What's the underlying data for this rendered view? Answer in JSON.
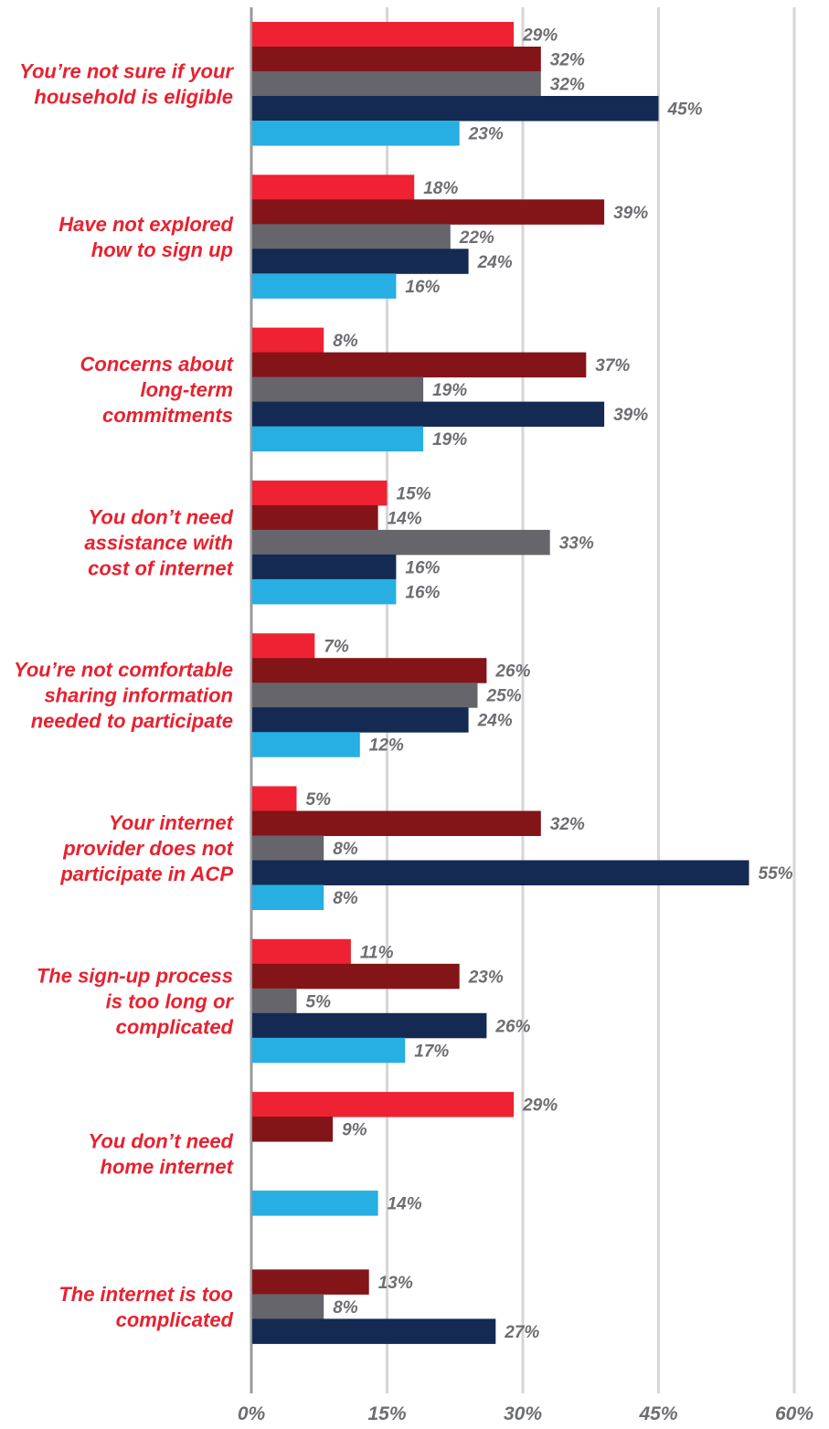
{
  "chart_data": {
    "type": "bar",
    "orientation": "horizontal",
    "categories": [
      [
        "You’re not sure if your",
        "household is eligible"
      ],
      [
        "Have not explored",
        "how to sign up"
      ],
      [
        "Concerns about",
        "long-term",
        "commitments"
      ],
      [
        "You don’t need",
        "assistance with",
        "cost of internet"
      ],
      [
        "You’re not comfortable",
        "sharing information",
        "needed to participate"
      ],
      [
        "Your internet",
        "provider does not",
        "participate in ACP"
      ],
      [
        "The sign-up process",
        "is too long or",
        "complicated"
      ],
      [
        "You don’t need",
        "home internet"
      ],
      [
        "The internet is too",
        "complicated"
      ]
    ],
    "series": [
      {
        "color": "#ee2233",
        "values": [
          29,
          18,
          8,
          15,
          7,
          5,
          11,
          29,
          null
        ]
      },
      {
        "color": "#831418",
        "values": [
          32,
          39,
          37,
          14,
          26,
          32,
          23,
          9,
          13
        ]
      },
      {
        "color": "#66656b",
        "values": [
          32,
          22,
          19,
          33,
          25,
          8,
          5,
          null,
          8
        ]
      },
      {
        "color": "#142a52",
        "values": [
          45,
          24,
          39,
          16,
          24,
          55,
          26,
          null,
          27
        ]
      },
      {
        "color": "#27aee3",
        "values": [
          23,
          16,
          19,
          16,
          12,
          8,
          17,
          14,
          null
        ]
      }
    ],
    "value_suffix": "%",
    "xlim": [
      0,
      60
    ],
    "xticks": [
      "0%",
      "15%",
      "30%",
      "45%",
      "60%"
    ],
    "gridlines": true,
    "legend": "none",
    "category_label_color": "#e8212f",
    "value_label_color": "#6d6e72",
    "gridline_color": "#d6d6d6",
    "axis_line_color": "#9a9a9a"
  }
}
